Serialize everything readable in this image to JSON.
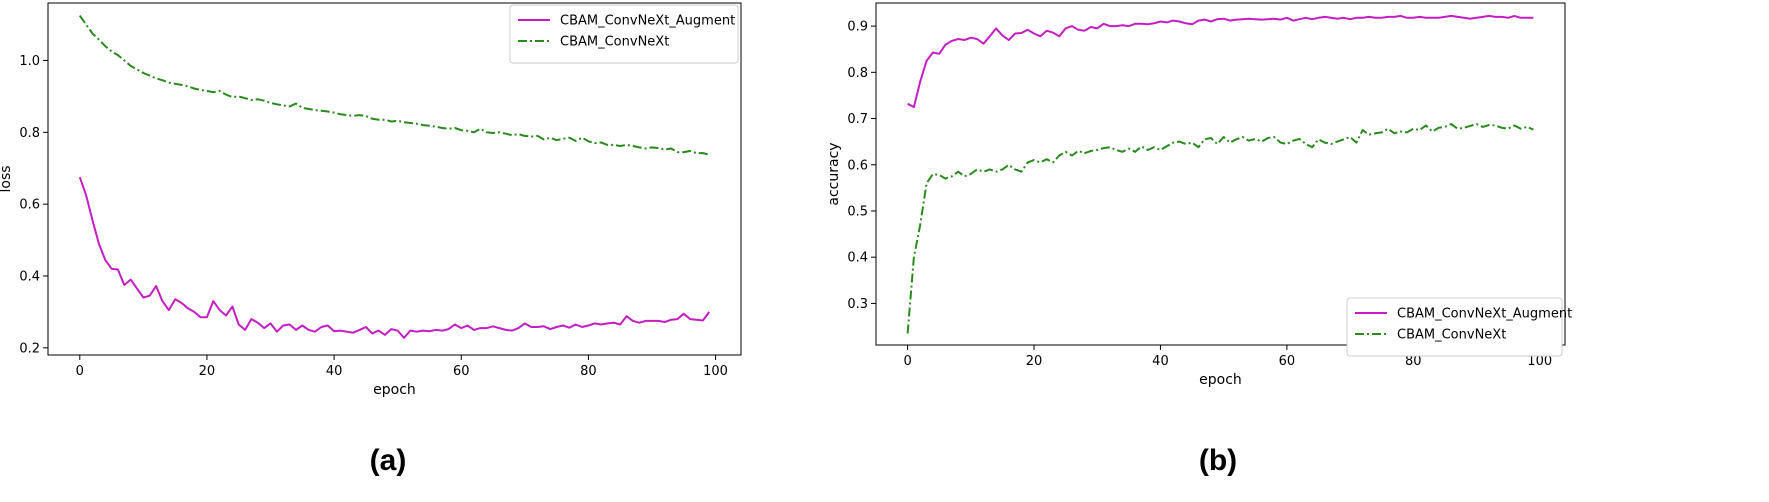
{
  "chart_data": [
    {
      "type": "line",
      "panel_caption": "(a)",
      "xlabel": "epoch",
      "ylabel": "loss",
      "xlim": [
        -5,
        104
      ],
      "ylim": [
        0.18,
        1.16
      ],
      "xticks": [
        0,
        20,
        40,
        60,
        80,
        100
      ],
      "yticks": [
        0.2,
        0.4,
        0.6,
        0.8,
        1.0
      ],
      "xtick_labels": [
        "0",
        "20",
        "40",
        "60",
        "80",
        "100"
      ],
      "ytick_labels": [
        "0.2",
        "0.4",
        "0.6",
        "0.8",
        "1.0"
      ],
      "grid": false,
      "legend_position": "top-right",
      "series": [
        {
          "name": "CBAM_ConvNeXt_Augment",
          "color": "#c41ec4",
          "style": "solid",
          "x": [
            0,
            1,
            2,
            3,
            4,
            5,
            6,
            7,
            8,
            9,
            10,
            11,
            12,
            13,
            14,
            15,
            16,
            17,
            18,
            19,
            20,
            21,
            22,
            23,
            24,
            25,
            26,
            27,
            28,
            29,
            30,
            31,
            32,
            33,
            34,
            35,
            36,
            37,
            38,
            39,
            40,
            41,
            42,
            43,
            44,
            45,
            46,
            47,
            48,
            49,
            50,
            51,
            52,
            53,
            54,
            55,
            56,
            57,
            58,
            59,
            60,
            61,
            62,
            63,
            64,
            65,
            66,
            67,
            68,
            69,
            70,
            71,
            72,
            73,
            74,
            75,
            76,
            77,
            78,
            79,
            80,
            81,
            82,
            83,
            84,
            85,
            86,
            87,
            88,
            89,
            90,
            91,
            92,
            93,
            94,
            95,
            96,
            97,
            98,
            99
          ],
          "values": [
            0.675,
            0.625,
            0.555,
            0.49,
            0.445,
            0.42,
            0.418,
            0.375,
            0.39,
            0.365,
            0.34,
            0.345,
            0.372,
            0.33,
            0.305,
            0.335,
            0.325,
            0.31,
            0.3,
            0.285,
            0.285,
            0.33,
            0.305,
            0.29,
            0.315,
            0.265,
            0.25,
            0.28,
            0.27,
            0.255,
            0.268,
            0.245,
            0.262,
            0.265,
            0.25,
            0.262,
            0.25,
            0.245,
            0.258,
            0.262,
            0.246,
            0.248,
            0.245,
            0.242,
            0.25,
            0.258,
            0.24,
            0.248,
            0.236,
            0.252,
            0.248,
            0.228,
            0.248,
            0.245,
            0.248,
            0.246,
            0.25,
            0.248,
            0.252,
            0.265,
            0.255,
            0.262,
            0.25,
            0.255,
            0.255,
            0.26,
            0.255,
            0.25,
            0.248,
            0.255,
            0.268,
            0.258,
            0.258,
            0.26,
            0.252,
            0.258,
            0.262,
            0.256,
            0.265,
            0.258,
            0.262,
            0.268,
            0.265,
            0.268,
            0.27,
            0.265,
            0.288,
            0.275,
            0.27,
            0.275,
            0.275,
            0.275,
            0.272,
            0.278,
            0.28,
            0.295,
            0.28,
            0.278,
            0.276,
            0.3
          ]
        },
        {
          "name": "CBAM_ConvNeXt",
          "color": "#2a8a1e",
          "style": "dashdot",
          "x": [
            0,
            1,
            2,
            3,
            4,
            5,
            6,
            7,
            8,
            9,
            10,
            11,
            12,
            13,
            14,
            15,
            16,
            17,
            18,
            19,
            20,
            21,
            22,
            23,
            24,
            25,
            26,
            27,
            28,
            29,
            30,
            31,
            32,
            33,
            34,
            35,
            36,
            37,
            38,
            39,
            40,
            41,
            42,
            43,
            44,
            45,
            46,
            47,
            48,
            49,
            50,
            51,
            52,
            53,
            54,
            55,
            56,
            57,
            58,
            59,
            60,
            61,
            62,
            63,
            64,
            65,
            66,
            67,
            68,
            69,
            70,
            71,
            72,
            73,
            74,
            75,
            76,
            77,
            78,
            79,
            80,
            81,
            82,
            83,
            84,
            85,
            86,
            87,
            88,
            89,
            90,
            91,
            92,
            93,
            94,
            95,
            96,
            97,
            98,
            99
          ],
          "values": [
            1.125,
            1.1,
            1.075,
            1.058,
            1.04,
            1.025,
            1.015,
            1.0,
            0.985,
            0.975,
            0.965,
            0.958,
            0.95,
            0.945,
            0.938,
            0.935,
            0.932,
            0.928,
            0.922,
            0.918,
            0.915,
            0.912,
            0.915,
            0.905,
            0.898,
            0.9,
            0.895,
            0.89,
            0.892,
            0.888,
            0.882,
            0.878,
            0.875,
            0.872,
            0.88,
            0.868,
            0.865,
            0.862,
            0.86,
            0.858,
            0.855,
            0.85,
            0.848,
            0.846,
            0.848,
            0.845,
            0.838,
            0.835,
            0.835,
            0.83,
            0.832,
            0.828,
            0.826,
            0.824,
            0.82,
            0.818,
            0.816,
            0.812,
            0.81,
            0.812,
            0.806,
            0.804,
            0.8,
            0.81,
            0.8,
            0.798,
            0.8,
            0.796,
            0.792,
            0.795,
            0.79,
            0.788,
            0.79,
            0.78,
            0.785,
            0.778,
            0.782,
            0.785,
            0.776,
            0.785,
            0.775,
            0.77,
            0.772,
            0.765,
            0.765,
            0.762,
            0.765,
            0.762,
            0.758,
            0.755,
            0.758,
            0.756,
            0.752,
            0.755,
            0.745,
            0.745,
            0.748,
            0.742,
            0.742,
            0.738
          ]
        }
      ]
    },
    {
      "type": "line",
      "panel_caption": "(b)",
      "xlabel": "epoch",
      "ylabel": "accuracy",
      "xlim": [
        -5,
        104
      ],
      "ylim": [
        0.21,
        0.95
      ],
      "xticks": [
        0,
        20,
        40,
        60,
        80,
        100
      ],
      "yticks": [
        0.3,
        0.4,
        0.5,
        0.6,
        0.7,
        0.8,
        0.9
      ],
      "xtick_labels": [
        "0",
        "20",
        "40",
        "60",
        "80",
        "100"
      ],
      "ytick_labels": [
        "0.3",
        "0.4",
        "0.5",
        "0.6",
        "0.7",
        "0.8",
        "0.9"
      ],
      "grid": false,
      "legend_position": "bottom-right",
      "series": [
        {
          "name": "CBAM_ConvNeXt_Augment",
          "color": "#c41ec4",
          "style": "solid",
          "x": [
            0,
            1,
            2,
            3,
            4,
            5,
            6,
            7,
            8,
            9,
            10,
            11,
            12,
            13,
            14,
            15,
            16,
            17,
            18,
            19,
            20,
            21,
            22,
            23,
            24,
            25,
            26,
            27,
            28,
            29,
            30,
            31,
            32,
            33,
            34,
            35,
            36,
            37,
            38,
            39,
            40,
            41,
            42,
            43,
            44,
            45,
            46,
            47,
            48,
            49,
            50,
            51,
            52,
            53,
            54,
            55,
            56,
            57,
            58,
            59,
            60,
            61,
            62,
            63,
            64,
            65,
            66,
            67,
            68,
            69,
            70,
            71,
            72,
            73,
            74,
            75,
            76,
            77,
            78,
            79,
            80,
            81,
            82,
            83,
            84,
            85,
            86,
            87,
            88,
            89,
            90,
            91,
            92,
            93,
            94,
            95,
            96,
            97,
            98,
            99
          ],
          "values": [
            0.732,
            0.725,
            0.78,
            0.825,
            0.843,
            0.84,
            0.86,
            0.868,
            0.872,
            0.87,
            0.875,
            0.872,
            0.862,
            0.878,
            0.895,
            0.88,
            0.87,
            0.884,
            0.885,
            0.892,
            0.884,
            0.878,
            0.89,
            0.886,
            0.878,
            0.895,
            0.9,
            0.892,
            0.89,
            0.898,
            0.895,
            0.905,
            0.9,
            0.9,
            0.902,
            0.9,
            0.905,
            0.905,
            0.904,
            0.906,
            0.91,
            0.908,
            0.912,
            0.91,
            0.906,
            0.904,
            0.912,
            0.914,
            0.91,
            0.915,
            0.916,
            0.912,
            0.914,
            0.915,
            0.916,
            0.915,
            0.914,
            0.915,
            0.916,
            0.914,
            0.918,
            0.912,
            0.915,
            0.918,
            0.915,
            0.918,
            0.92,
            0.918,
            0.916,
            0.918,
            0.915,
            0.918,
            0.918,
            0.92,
            0.918,
            0.918,
            0.92,
            0.92,
            0.922,
            0.918,
            0.918,
            0.92,
            0.918,
            0.918,
            0.918,
            0.92,
            0.922,
            0.92,
            0.918,
            0.916,
            0.918,
            0.92,
            0.922,
            0.92,
            0.92,
            0.918,
            0.922,
            0.918,
            0.918,
            0.918
          ]
        },
        {
          "name": "CBAM_ConvNeXt",
          "color": "#2a8a1e",
          "style": "dashdot",
          "x": [
            0,
            1,
            2,
            3,
            4,
            5,
            6,
            7,
            8,
            9,
            10,
            11,
            12,
            13,
            14,
            15,
            16,
            17,
            18,
            19,
            20,
            21,
            22,
            23,
            24,
            25,
            26,
            27,
            28,
            29,
            30,
            31,
            32,
            33,
            34,
            35,
            36,
            37,
            38,
            39,
            40,
            41,
            42,
            43,
            44,
            45,
            46,
            47,
            48,
            49,
            50,
            51,
            52,
            53,
            54,
            55,
            56,
            57,
            58,
            59,
            60,
            61,
            62,
            63,
            64,
            65,
            66,
            67,
            68,
            69,
            70,
            71,
            72,
            73,
            74,
            75,
            76,
            77,
            78,
            79,
            80,
            81,
            82,
            83,
            84,
            85,
            86,
            87,
            88,
            89,
            90,
            91,
            92,
            93,
            94,
            95,
            96,
            97,
            98,
            99
          ],
          "values": [
            0.235,
            0.4,
            0.47,
            0.56,
            0.58,
            0.578,
            0.57,
            0.575,
            0.585,
            0.575,
            0.58,
            0.59,
            0.585,
            0.59,
            0.585,
            0.59,
            0.6,
            0.59,
            0.585,
            0.605,
            0.61,
            0.605,
            0.612,
            0.605,
            0.62,
            0.628,
            0.62,
            0.63,
            0.625,
            0.63,
            0.632,
            0.636,
            0.638,
            0.632,
            0.628,
            0.635,
            0.628,
            0.64,
            0.632,
            0.638,
            0.632,
            0.64,
            0.648,
            0.65,
            0.645,
            0.648,
            0.638,
            0.655,
            0.658,
            0.645,
            0.66,
            0.648,
            0.655,
            0.66,
            0.652,
            0.656,
            0.65,
            0.658,
            0.66,
            0.648,
            0.645,
            0.652,
            0.656,
            0.645,
            0.638,
            0.655,
            0.648,
            0.645,
            0.65,
            0.655,
            0.66,
            0.648,
            0.675,
            0.665,
            0.668,
            0.67,
            0.678,
            0.668,
            0.672,
            0.67,
            0.678,
            0.675,
            0.685,
            0.672,
            0.68,
            0.682,
            0.688,
            0.678,
            0.68,
            0.684,
            0.688,
            0.682,
            0.686,
            0.685,
            0.68,
            0.678,
            0.685,
            0.678,
            0.682,
            0.676
          ]
        }
      ]
    }
  ]
}
